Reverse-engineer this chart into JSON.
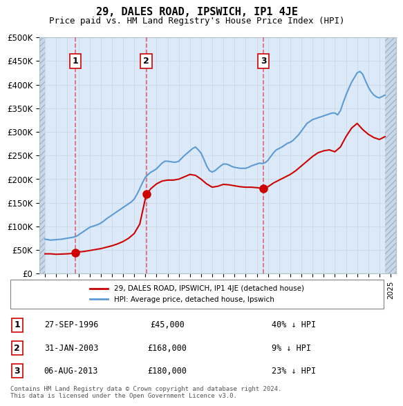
{
  "title": "29, DALES ROAD, IPSWICH, IP1 4JE",
  "subtitle": "Price paid vs. HM Land Registry's House Price Index (HPI)",
  "ylabel": "",
  "ylim": [
    0,
    500000
  ],
  "yticks": [
    0,
    50000,
    100000,
    150000,
    200000,
    250000,
    300000,
    350000,
    400000,
    450000,
    500000
  ],
  "ytick_labels": [
    "£0",
    "£50K",
    "£100K",
    "£150K",
    "£200K",
    "£250K",
    "£300K",
    "£350K",
    "£400K",
    "£450K",
    "£500K"
  ],
  "xlim_start": 1993.5,
  "xlim_end": 2025.5,
  "background_color": "#dce9f8",
  "hatch_color": "#b0c4d8",
  "grid_color": "#b0bec5",
  "sale_color": "#cc0000",
  "hpi_color": "#5b9bd5",
  "vline_color": "#e05050",
  "purchases": [
    {
      "date_year": 1996.74,
      "price": 45000,
      "label": "1",
      "date_str": "27-SEP-1996",
      "hpi_pct": "40% ↓ HPI"
    },
    {
      "date_year": 2003.08,
      "price": 168000,
      "label": "2",
      "date_str": "31-JAN-2003",
      "hpi_pct": "9% ↓ HPI"
    },
    {
      "date_year": 2013.59,
      "price": 180000,
      "label": "3",
      "date_str": "06-AUG-2013",
      "hpi_pct": "23% ↓ HPI"
    }
  ],
  "legend_sale_label": "29, DALES ROAD, IPSWICH, IP1 4JE (detached house)",
  "legend_hpi_label": "HPI: Average price, detached house, Ipswich",
  "footer": "Contains HM Land Registry data © Crown copyright and database right 2024.\nThis data is licensed under the Open Government Licence v3.0.",
  "hpi_data_x": [
    1994.0,
    1994.25,
    1994.5,
    1994.75,
    1995.0,
    1995.25,
    1995.5,
    1995.75,
    1996.0,
    1996.25,
    1996.5,
    1996.75,
    1997.0,
    1997.25,
    1997.5,
    1997.75,
    1998.0,
    1998.25,
    1998.5,
    1998.75,
    1999.0,
    1999.25,
    1999.5,
    1999.75,
    2000.0,
    2000.25,
    2000.5,
    2000.75,
    2001.0,
    2001.25,
    2001.5,
    2001.75,
    2002.0,
    2002.25,
    2002.5,
    2002.75,
    2003.0,
    2003.25,
    2003.5,
    2003.75,
    2004.0,
    2004.25,
    2004.5,
    2004.75,
    2005.0,
    2005.25,
    2005.5,
    2005.75,
    2006.0,
    2006.25,
    2006.5,
    2006.75,
    2007.0,
    2007.25,
    2007.5,
    2007.75,
    2008.0,
    2008.25,
    2008.5,
    2008.75,
    2009.0,
    2009.25,
    2009.5,
    2009.75,
    2010.0,
    2010.25,
    2010.5,
    2010.75,
    2011.0,
    2011.25,
    2011.5,
    2011.75,
    2012.0,
    2012.25,
    2012.5,
    2012.75,
    2013.0,
    2013.25,
    2013.5,
    2013.75,
    2014.0,
    2014.25,
    2014.5,
    2014.75,
    2015.0,
    2015.25,
    2015.5,
    2015.75,
    2016.0,
    2016.25,
    2016.5,
    2016.75,
    2017.0,
    2017.25,
    2017.5,
    2017.75,
    2018.0,
    2018.25,
    2018.5,
    2018.75,
    2019.0,
    2019.25,
    2019.5,
    2019.75,
    2020.0,
    2020.25,
    2020.5,
    2020.75,
    2021.0,
    2021.25,
    2021.5,
    2021.75,
    2022.0,
    2022.25,
    2022.5,
    2022.75,
    2023.0,
    2023.25,
    2023.5,
    2023.75,
    2024.0,
    2024.25,
    2024.5
  ],
  "hpi_data_y": [
    73000,
    72000,
    71000,
    71500,
    72000,
    72500,
    73000,
    74000,
    75000,
    76000,
    77000,
    78500,
    82000,
    86000,
    90000,
    94000,
    98000,
    100000,
    102000,
    104000,
    107000,
    111000,
    116000,
    120000,
    124000,
    128000,
    132000,
    136000,
    140000,
    144000,
    148000,
    152000,
    158000,
    168000,
    180000,
    193000,
    204000,
    210000,
    215000,
    218000,
    222000,
    228000,
    234000,
    238000,
    238000,
    237000,
    236000,
    236000,
    238000,
    244000,
    250000,
    255000,
    260000,
    265000,
    268000,
    262000,
    255000,
    242000,
    228000,
    218000,
    215000,
    218000,
    223000,
    228000,
    232000,
    232000,
    230000,
    227000,
    225000,
    224000,
    223000,
    223000,
    223000,
    225000,
    228000,
    230000,
    232000,
    234000,
    233000,
    235000,
    240000,
    248000,
    256000,
    262000,
    265000,
    268000,
    272000,
    276000,
    278000,
    282000,
    288000,
    294000,
    302000,
    310000,
    318000,
    322000,
    326000,
    328000,
    330000,
    332000,
    334000,
    336000,
    338000,
    340000,
    340000,
    336000,
    345000,
    362000,
    378000,
    392000,
    405000,
    415000,
    425000,
    428000,
    422000,
    408000,
    395000,
    385000,
    378000,
    374000,
    372000,
    375000,
    378000
  ],
  "sale_data_x": [
    1994.0,
    1994.5,
    1995.0,
    1995.5,
    1996.0,
    1996.5,
    1996.74,
    1997.0,
    1997.5,
    1998.0,
    1998.5,
    1999.0,
    1999.5,
    2000.0,
    2000.5,
    2001.0,
    2001.5,
    2002.0,
    2002.5,
    2003.08,
    2003.5,
    2004.0,
    2004.5,
    2005.0,
    2005.5,
    2006.0,
    2006.5,
    2007.0,
    2007.5,
    2008.0,
    2008.5,
    2009.0,
    2009.5,
    2010.0,
    2010.5,
    2011.0,
    2011.5,
    2012.0,
    2012.5,
    2013.0,
    2013.59,
    2014.0,
    2014.5,
    2015.0,
    2015.5,
    2016.0,
    2016.5,
    2017.0,
    2017.5,
    2018.0,
    2018.5,
    2019.0,
    2019.5,
    2020.0,
    2020.5,
    2021.0,
    2021.5,
    2022.0,
    2022.5,
    2023.0,
    2023.5,
    2024.0,
    2024.5
  ],
  "sale_data_y": [
    42000,
    42000,
    41000,
    41500,
    42000,
    43000,
    45000,
    46000,
    47000,
    49000,
    51000,
    53000,
    56000,
    59000,
    63000,
    68000,
    75000,
    85000,
    105000,
    168000,
    180000,
    190000,
    196000,
    198000,
    198000,
    200000,
    205000,
    210000,
    208000,
    200000,
    190000,
    183000,
    185000,
    189000,
    188000,
    186000,
    184000,
    183000,
    183000,
    182000,
    180000,
    184000,
    192000,
    198000,
    204000,
    210000,
    218000,
    228000,
    238000,
    248000,
    256000,
    260000,
    262000,
    258000,
    268000,
    290000,
    308000,
    318000,
    305000,
    295000,
    288000,
    284000,
    290000
  ]
}
